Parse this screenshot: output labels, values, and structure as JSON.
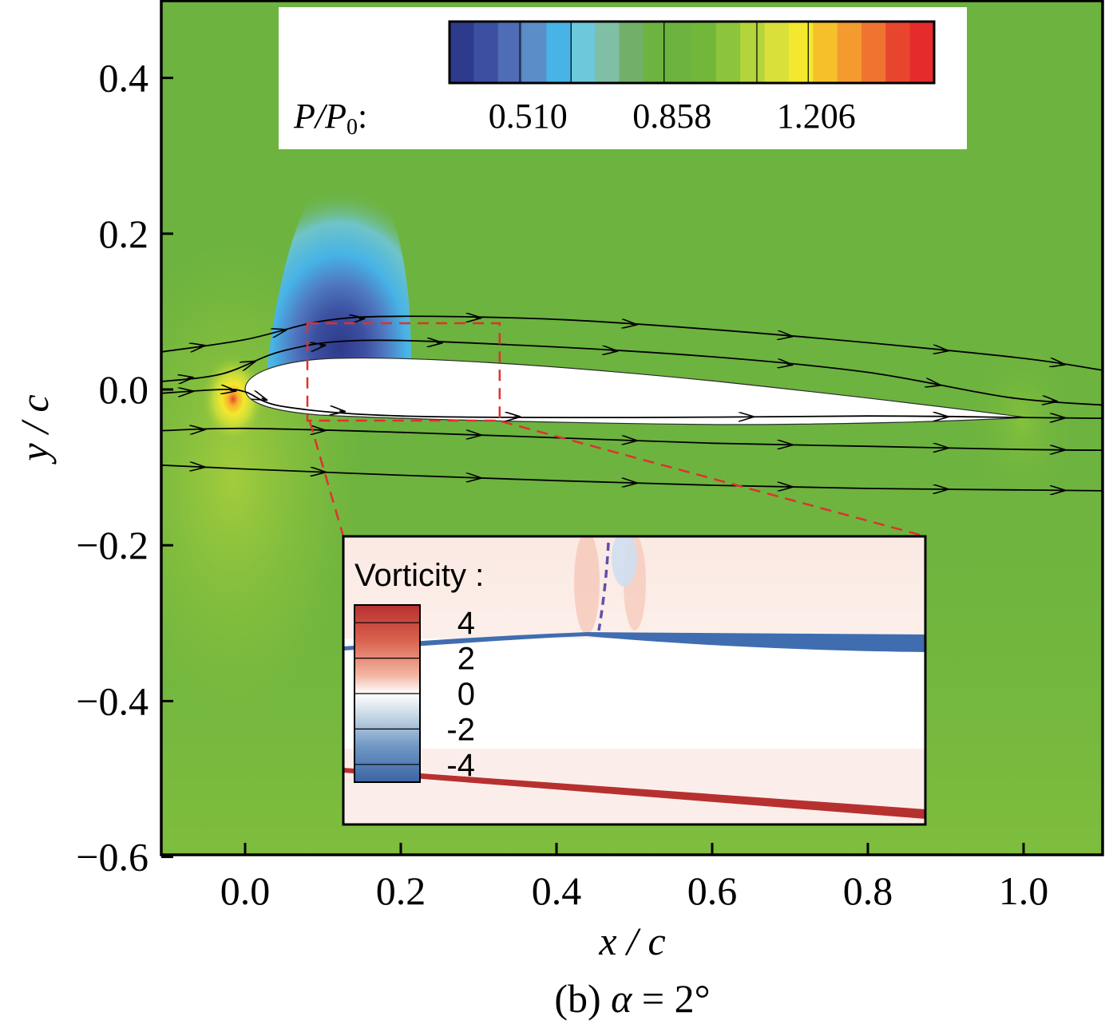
{
  "chart_data": {
    "type": "heatmap",
    "xlabel": "x / c",
    "ylabel": "y / c",
    "xlim": [
      -0.11,
      1.1
    ],
    "ylim": [
      -0.6,
      0.5
    ],
    "x_ticks": [
      0.0,
      0.2,
      0.4,
      0.6,
      0.8,
      1.0
    ],
    "y_ticks": [
      0.4,
      0.2,
      0.0,
      -0.2,
      -0.4,
      -0.6
    ],
    "x_tick_labels": [
      "0.0",
      "0.2",
      "0.4",
      "0.6",
      "0.8",
      "1.0"
    ],
    "y_tick_labels": [
      "0.4",
      "0.2",
      "0.0",
      "−0.2",
      "−0.4",
      "−0.6"
    ],
    "caption": {
      "prefix": "(b) ",
      "symbol": "α",
      "suffix": " = 2°"
    },
    "pressure_colorbar": {
      "label_main": "P/P",
      "label_sub": "0",
      "label_end": ":",
      "tick_labels": [
        "0.510",
        "0.858",
        "1.206"
      ],
      "tick_values": [
        0.51,
        0.858,
        1.206
      ],
      "colors": [
        "#2e3a8c",
        "#3c4fa0",
        "#4f6db4",
        "#5b8ec8",
        "#47b3e6",
        "#6ec8dc",
        "#7fbfa6",
        "#72b06a",
        "#6db33f",
        "#6db33f",
        "#72b63a",
        "#8cc43c",
        "#b3d43a",
        "#d9e03a",
        "#f3e82e",
        "#f6c02a",
        "#f39b2e",
        "#ee7430",
        "#e8452f",
        "#e52b2b"
      ]
    },
    "vorticity_inset": {
      "title": "Vorticity :",
      "tick_labels": [
        "4",
        "2",
        "0",
        "-2",
        "-4"
      ],
      "tick_values": [
        4,
        2,
        0,
        -2,
        -4
      ],
      "colors": [
        "#b73030",
        "#d9624e",
        "#f3a891",
        "#fbe1d8",
        "#ffffff",
        "#dde8ef",
        "#99b7d4",
        "#5b88bb",
        "#3b64a3"
      ]
    },
    "airfoil": {
      "leading_edge": [
        0.0,
        0.0
      ],
      "trailing_edge": [
        1.0,
        -0.037
      ]
    },
    "zoom_box": {
      "x_range": [
        0.08,
        0.327
      ],
      "y_range": [
        -0.04,
        0.085
      ]
    },
    "streamlines": [
      [
        [
          -0.11,
          0.048
        ],
        [
          0.0,
          0.064
        ],
        [
          0.1,
          0.088
        ],
        [
          0.2,
          0.094
        ],
        [
          0.4,
          0.09
        ],
        [
          0.6,
          0.077
        ],
        [
          0.8,
          0.06
        ],
        [
          1.0,
          0.04
        ],
        [
          1.1,
          0.025
        ]
      ],
      [
        [
          -0.11,
          0.01
        ],
        [
          -0.03,
          0.02
        ],
        [
          0.05,
          0.05
        ],
        [
          0.15,
          0.063
        ],
        [
          0.35,
          0.057
        ],
        [
          0.6,
          0.042
        ],
        [
          0.8,
          0.022
        ],
        [
          0.98,
          -0.01
        ],
        [
          1.1,
          -0.02
        ]
      ],
      [
        [
          -0.11,
          -0.005
        ],
        [
          -0.03,
          0.0
        ],
        [
          0.0,
          -0.003
        ],
        [
          0.05,
          -0.022
        ],
        [
          0.2,
          -0.034
        ],
        [
          0.5,
          -0.036
        ],
        [
          0.8,
          -0.034
        ],
        [
          1.0,
          -0.036
        ],
        [
          1.1,
          -0.037
        ]
      ],
      [
        [
          -0.11,
          -0.053
        ],
        [
          0.0,
          -0.05
        ],
        [
          0.2,
          -0.055
        ],
        [
          0.4,
          -0.062
        ],
        [
          0.6,
          -0.069
        ],
        [
          0.8,
          -0.073
        ],
        [
          1.0,
          -0.077
        ],
        [
          1.1,
          -0.078
        ]
      ],
      [
        [
          -0.11,
          -0.097
        ],
        [
          0.0,
          -0.102
        ],
        [
          0.2,
          -0.11
        ],
        [
          0.4,
          -0.117
        ],
        [
          0.6,
          -0.123
        ],
        [
          0.8,
          -0.127
        ],
        [
          1.0,
          -0.129
        ],
        [
          1.1,
          -0.13
        ]
      ]
    ]
  }
}
